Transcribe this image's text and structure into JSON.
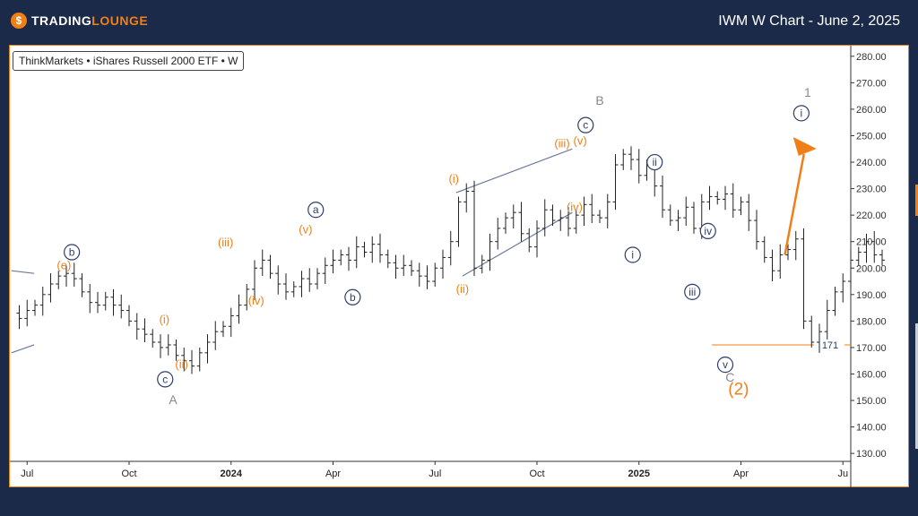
{
  "header": {
    "logo_text_1": "TRADING",
    "logo_text_2": "LOUNGE",
    "title": "IWM W Chart - June 2, 2025"
  },
  "legend": {
    "symbol_label": "ThinkMarkets • iShares Russell 2000 ETF • W"
  },
  "colors": {
    "accent": "#f07f17",
    "navy": "#1b2a48",
    "wave_blue": "#2c3e6b",
    "wave_grey": "#8a8a8a",
    "channel": "#6b7a99"
  },
  "chart_data": {
    "type": "candlestick",
    "title": "IWM W Chart - June 2, 2025",
    "ylim": [
      127,
      284
    ],
    "y_ticks": [
      130,
      140,
      150,
      160,
      170,
      180,
      190,
      200,
      210,
      220,
      230,
      240,
      250,
      260,
      270,
      280
    ],
    "y_tick_labels": [
      "130.00",
      "140.00",
      "150.00",
      "160.00",
      "170.00",
      "180.00",
      "190.00",
      "200.00",
      "210.00",
      "220.00",
      "230.00",
      "240.00",
      "250.00",
      "260.00",
      "270.00",
      "280.00"
    ],
    "x_labels": [
      {
        "week": 2,
        "label": "Jul",
        "bold": false
      },
      {
        "week": 15,
        "label": "Oct",
        "bold": false
      },
      {
        "week": 28,
        "label": "2024",
        "bold": true
      },
      {
        "week": 41,
        "label": "Apr",
        "bold": false
      },
      {
        "week": 54,
        "label": "Jul",
        "bold": false
      },
      {
        "week": 67,
        "label": "Oct",
        "bold": false
      },
      {
        "week": 80,
        "label": "2025",
        "bold": true
      },
      {
        "week": 93,
        "label": "Apr",
        "bold": false
      },
      {
        "week": 106,
        "label": "Ju",
        "bold": false
      }
    ],
    "x_range": [
      -0.2,
      107
    ],
    "closes": [
      183,
      181,
      184,
      186,
      190,
      194,
      197,
      198,
      196,
      191,
      187,
      186,
      189,
      186,
      184,
      180,
      177,
      175,
      172,
      170,
      171,
      167,
      165,
      163,
      168,
      172,
      176,
      178,
      182,
      186,
      192,
      200,
      203,
      198,
      194,
      191,
      193,
      196,
      194,
      198,
      201,
      203,
      205,
      203,
      208,
      206,
      209,
      205,
      202,
      200,
      201,
      199,
      197,
      195,
      200,
      204,
      210,
      225,
      229,
      200,
      203,
      210,
      215,
      219,
      221,
      213,
      208,
      215,
      222,
      218,
      219,
      215,
      220,
      224,
      220,
      219,
      225,
      239,
      243,
      241,
      235,
      239,
      231,
      222,
      218,
      219,
      223,
      215,
      225,
      227,
      226,
      228,
      222,
      225,
      218,
      210,
      204,
      199,
      205,
      207,
      211,
      180,
      172,
      176,
      184,
      191,
      195,
      203,
      206,
      210,
      205,
      203
    ],
    "level_line": {
      "value": 171,
      "label": "171"
    },
    "labels": [
      {
        "text": "b",
        "week": 7.7,
        "y": 206,
        "style": "circle-navy"
      },
      {
        "text": "(e)",
        "week": 6.7,
        "y": 201,
        "style": "orange"
      },
      {
        "text": "(i)",
        "week": 19.5,
        "y": 180.5,
        "style": "orange"
      },
      {
        "text": "(ii)",
        "week": 21.7,
        "y": 163.5,
        "style": "orange"
      },
      {
        "text": "c",
        "week": 19.6,
        "y": 158,
        "style": "circle-navy"
      },
      {
        "text": "A",
        "week": 20.6,
        "y": 150,
        "style": "grey"
      },
      {
        "text": "(iii)",
        "week": 27.3,
        "y": 209.5,
        "style": "orange"
      },
      {
        "text": "(iv)",
        "week": 31.2,
        "y": 187.5,
        "style": "orange"
      },
      {
        "text": "(v)",
        "week": 37.5,
        "y": 214.5,
        "style": "orange"
      },
      {
        "text": "a",
        "week": 38.8,
        "y": 222,
        "style": "circle-navy"
      },
      {
        "text": "b",
        "week": 43.5,
        "y": 189,
        "style": "circle-navy"
      },
      {
        "text": "(i)",
        "week": 56.4,
        "y": 233.5,
        "style": "orange"
      },
      {
        "text": "(ii)",
        "week": 57.5,
        "y": 192,
        "style": "orange"
      },
      {
        "text": "(iii)",
        "week": 70.2,
        "y": 247,
        "style": "orange"
      },
      {
        "text": "(v)",
        "week": 72.5,
        "y": 248,
        "style": "orange"
      },
      {
        "text": "(iv)",
        "week": 71.8,
        "y": 223,
        "style": "orange"
      },
      {
        "text": "c",
        "week": 73.2,
        "y": 254,
        "style": "circle-navy"
      },
      {
        "text": "B",
        "week": 75.0,
        "y": 263,
        "style": "grey"
      },
      {
        "text": "ii",
        "week": 82.0,
        "y": 240,
        "style": "circle-navy"
      },
      {
        "text": "i",
        "week": 79.2,
        "y": 205,
        "style": "circle-navy"
      },
      {
        "text": "iv",
        "week": 88.8,
        "y": 214,
        "style": "circle-navy"
      },
      {
        "text": "iii",
        "week": 86.8,
        "y": 191,
        "style": "circle-navy"
      },
      {
        "text": "v",
        "week": 91.0,
        "y": 163.5,
        "style": "circle-navy"
      },
      {
        "text": "C",
        "week": 91.6,
        "y": 158.5,
        "style": "grey"
      },
      {
        "text": "(2)",
        "week": 92.7,
        "y": 153.5,
        "style": "orange-big"
      },
      {
        "text": "1",
        "week": 101.5,
        "y": 266,
        "style": "grey"
      },
      {
        "text": "i",
        "week": 100.7,
        "y": 258.5,
        "style": "circle-navy"
      }
    ],
    "lines": [
      {
        "from": [
          0,
          199
        ],
        "to": [
          2.9,
          198
        ],
        "color": "channel"
      },
      {
        "from": [
          0,
          168
        ],
        "to": [
          2.9,
          171
        ],
        "color": "channel"
      },
      {
        "from": [
          56.7,
          228.5
        ],
        "to": [
          71.5,
          245
        ],
        "color": "channel"
      },
      {
        "from": [
          57.5,
          197
        ],
        "to": [
          71.5,
          221
        ],
        "color": "channel"
      }
    ],
    "arrow": {
      "from": [
        98.6,
        205
      ],
      "to": [
        100.8,
        250.5
      ]
    }
  }
}
